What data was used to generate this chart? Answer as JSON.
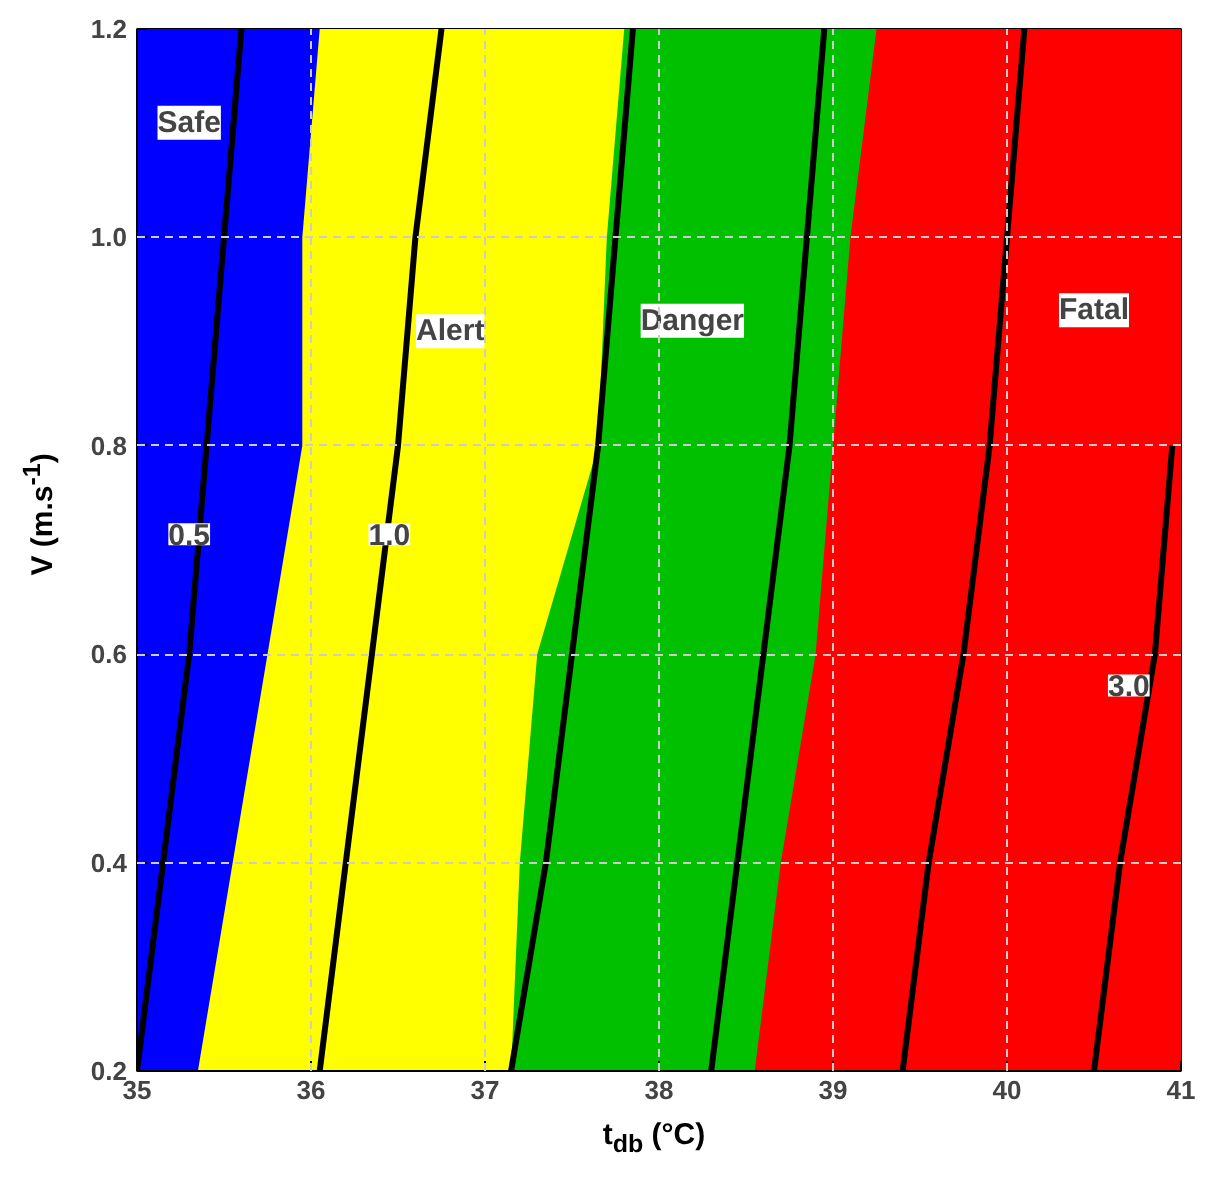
{
  "chart_data": {
    "type": "area",
    "xlabel": "t$_{db}$ (°C)",
    "ylabel": "V (m.s$^{-1}$)",
    "xlim": [
      35,
      41
    ],
    "ylim": [
      0.2,
      1.2
    ],
    "xticks": [
      35,
      36,
      37,
      38,
      39,
      40,
      41
    ],
    "yticks": [
      {
        "value": 0.2,
        "label": "0.2"
      },
      {
        "value": 0.4,
        "label": "0.4"
      },
      {
        "value": 0.6,
        "label": "0.6"
      },
      {
        "value": 0.8,
        "label": "0.8"
      },
      {
        "value": 1.0,
        "label": "1.0"
      },
      {
        "value": 1.2,
        "label": "1.2"
      }
    ],
    "grid": true,
    "line_style": "solid",
    "marker": "none",
    "series": [
      {
        "color": "#0000ff",
        "x": [
          35,
          41
        ],
        "values": [
          1.2,
          1.2
        ]
      },
      {
        "color": "#ffff00",
        "x": [
          35.35,
          35.55,
          35.75,
          35.95,
          35.95,
          36.05,
          41
        ],
        "values": [
          0.2,
          0.4,
          0.6,
          0.8,
          1.0,
          1.2,
          1.2
        ]
      },
      {
        "name": "Danger",
        "color": "#00c000",
        "x": [
          37.15,
          37.2,
          37.3,
          37.65,
          37.7,
          37.8,
          41
        ],
        "values": [
          0.2,
          0.4,
          0.6,
          0.8,
          1.0,
          1.2,
          1.2
        ]
      },
      {
        "color": "#ff0000",
        "x": [
          38.55,
          38.7,
          38.9,
          39.0,
          39.1,
          39.25,
          41
        ],
        "values": [
          0.2,
          0.4,
          0.6,
          0.8,
          1.0,
          1.2,
          1.2
        ]
      },
      {
        "type": "line",
        "color": "#000000",
        "x": [
          35.0,
          35.15,
          35.3,
          35.4,
          35.5,
          35.6
        ],
        "values": [
          0.2,
          0.4,
          0.6,
          0.8,
          1.0,
          1.2
        ]
      },
      {
        "type": "line",
        "color": "#000000",
        "x": [
          36.05,
          36.2,
          36.35,
          36.5,
          36.6,
          36.75
        ],
        "values": [
          0.2,
          0.4,
          0.6,
          0.8,
          1.0,
          1.2
        ]
      },
      {
        "type": "line",
        "color": "#000000",
        "x": [
          37.15,
          37.35,
          37.5,
          37.65,
          37.75,
          37.85
        ],
        "values": [
          0.2,
          0.4,
          0.6,
          0.8,
          1.0,
          1.2
        ]
      },
      {
        "type": "line",
        "color": "#000000",
        "x": [
          38.3,
          38.45,
          38.6,
          38.75,
          38.85,
          38.95
        ],
        "values": [
          0.2,
          0.4,
          0.6,
          0.8,
          1.0,
          1.2
        ]
      },
      {
        "type": "line",
        "color": "#000000",
        "x": [
          39.4,
          39.55,
          39.75,
          39.9,
          40.0,
          40.1
        ],
        "values": [
          0.2,
          0.4,
          0.6,
          0.8,
          1.0,
          1.2
        ]
      },
      {
        "type": "line",
        "color": "#000000",
        "x": [
          40.5,
          40.65,
          40.85,
          40.95
        ],
        "values": [
          0.2,
          0.4,
          0.6,
          0.8
        ]
      }
    ],
    "annotations": [
      {
        "text": "Safe",
        "x": 35.3,
        "y": 1.11
      },
      {
        "text": "Alert",
        "x": 36.8,
        "y": 0.91
      },
      {
        "text": "Fatal",
        "x": 40.5,
        "y": 0.93
      },
      {
        "text": "0.5",
        "x": 35.3,
        "y": 0.715
      },
      {
        "text": "1.0",
        "x": 36.45,
        "y": 0.715
      },
      {
        "text": "3.0",
        "x": 40.7,
        "y": 0.57
      }
    ]
  }
}
